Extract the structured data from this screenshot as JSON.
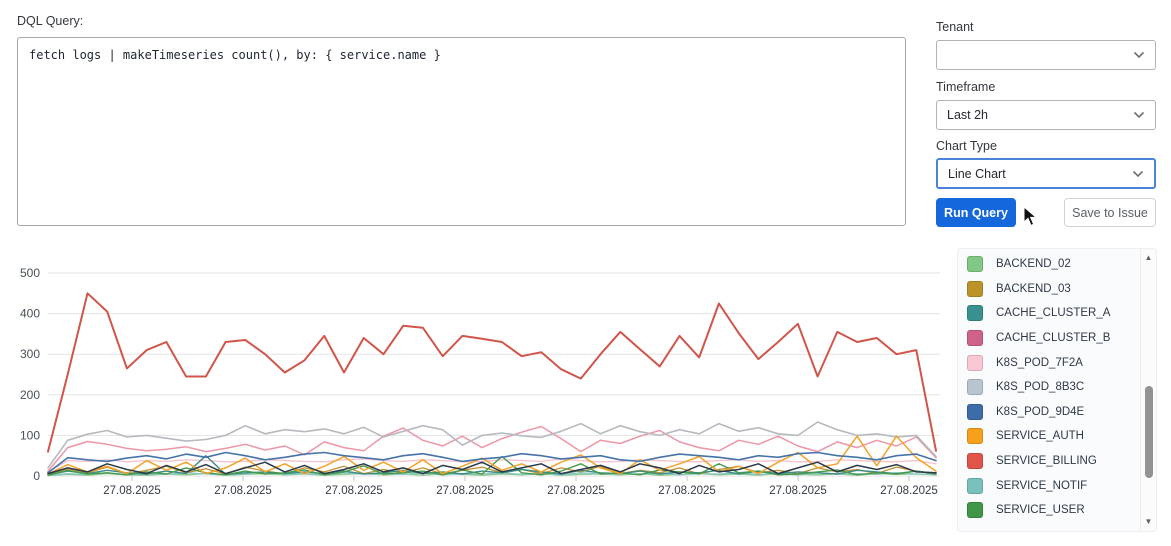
{
  "query_section": {
    "label": "DQL Query:",
    "query_text": "fetch logs | makeTimeseries count(), by: { service.name }"
  },
  "controls": {
    "tenant": {
      "label": "Tenant",
      "value": "",
      "redacted": true
    },
    "timeframe": {
      "label": "Timeframe",
      "value": "Last 2h"
    },
    "chart_type": {
      "label": "Chart Type",
      "value": "Line Chart",
      "focused": true
    },
    "run_button": {
      "label": "Run Query",
      "color": "#1568dc"
    },
    "save_button": {
      "label": "Save to Issue"
    }
  },
  "legend": {
    "items": [
      {
        "label": "BACKEND_02",
        "color": "#82c785"
      },
      {
        "label": "BACKEND_03",
        "color": "#bb9327"
      },
      {
        "label": "CACHE_CLUSTER_A",
        "color": "#38918e"
      },
      {
        "label": "CACHE_CLUSTER_B",
        "color": "#cf6288"
      },
      {
        "label": "K8S_POD_7F2A",
        "color": "#f8c9d4"
      },
      {
        "label": "K8S_POD_8B3C",
        "color": "#bac3d0"
      },
      {
        "label": "K8S_POD_9D4E",
        "color": "#3e6ca8"
      },
      {
        "label": "SERVICE_AUTH",
        "color": "#f6a01e"
      },
      {
        "label": "SERVICE_BILLING",
        "color": "#e1544a"
      },
      {
        "label": "SERVICE_NOTIF",
        "color": "#7ac1bc"
      },
      {
        "label": "SERVICE_USER",
        "color": "#3f9646"
      }
    ],
    "scrollable": true
  },
  "chart_data": {
    "type": "line",
    "title": "",
    "xlabel": "",
    "ylabel": "",
    "ylim": [
      0,
      500
    ],
    "yticks": [
      0,
      100,
      200,
      300,
      400,
      500
    ],
    "x_tick_labels": [
      "27.08.2025",
      "27.08.2025",
      "27.08.2025",
      "27.08.2025",
      "27.08.2025",
      "27.08.2025",
      "27.08.2025",
      "27.08.2025"
    ],
    "grid": true,
    "legend_position": "right-panel",
    "note": "values estimated from gridlines; one dark-navy line has no visible legend entry (legend is scrolled)",
    "series": [
      {
        "name": "BACKEND_02",
        "color": "#8ccb8f",
        "width": 1.3,
        "values": [
          1,
          4,
          2,
          6,
          3,
          2,
          5,
          3,
          6,
          2,
          4,
          6,
          3,
          5,
          2,
          4,
          6,
          3,
          5,
          2,
          6,
          4,
          2,
          5,
          3,
          6,
          2,
          4,
          5,
          3,
          6,
          2,
          4,
          6,
          3,
          5,
          2,
          6,
          4,
          3,
          5,
          2,
          6,
          4,
          5,
          3
        ]
      },
      {
        "name": "SERVICE_NOTIF",
        "color": "#85c7c1",
        "width": 1.3,
        "values": [
          2,
          6,
          4,
          8,
          3,
          6,
          4,
          8,
          5,
          3,
          6,
          8,
          4,
          6,
          3,
          8,
          5,
          6,
          4,
          8,
          3,
          6,
          5,
          8,
          4,
          6,
          3,
          8,
          5,
          6,
          4,
          8,
          3,
          6,
          5,
          8,
          4,
          6,
          3,
          8,
          5,
          6,
          4,
          8,
          5,
          4
        ]
      },
      {
        "name": "K8S_POD_7F2A",
        "color": "#f5c3cf",
        "width": 1.4,
        "values": [
          10,
          38,
          36,
          40,
          35,
          38,
          36,
          40,
          38,
          35,
          36,
          40,
          38,
          36,
          35,
          40,
          42,
          38,
          36,
          40,
          38,
          35,
          36,
          40,
          38,
          36,
          42,
          38,
          35,
          36,
          40,
          38,
          36,
          35,
          38,
          40,
          36,
          38,
          35,
          36,
          40,
          38,
          36,
          35,
          38,
          30
        ]
      },
      {
        "name": "CACHE_CLUSTER_B",
        "color": "#ec96a6",
        "width": 1.5,
        "values": [
          12,
          70,
          85,
          78,
          68,
          62,
          66,
          72,
          60,
          68,
          78,
          64,
          74,
          52,
          84,
          70,
          62,
          98,
          118,
          88,
          74,
          98,
          70,
          92,
          108,
          122,
          92,
          60,
          88,
          80,
          98,
          112,
          84,
          70,
          62,
          88,
          78,
          98,
          74,
          60,
          84,
          70,
          88,
          74,
          96,
          45
        ]
      },
      {
        "name": "K8S_POD_8B3C",
        "color": "#b6babf",
        "width": 1.6,
        "values": [
          20,
          88,
          103,
          112,
          96,
          100,
          93,
          86,
          90,
          100,
          124,
          104,
          114,
          109,
          116,
          104,
          120,
          96,
          110,
          124,
          114,
          76,
          100,
          106,
          99,
          95,
          110,
          129,
          104,
          124,
          109,
          100,
          114,
          104,
          129,
          110,
          119,
          104,
          100,
          133,
          114,
          100,
          104,
          96,
          100,
          48
        ]
      },
      {
        "name": "BACKEND_03",
        "color": "#c39030",
        "width": 1.3,
        "values": [
          4,
          18,
          8,
          22,
          5,
          14,
          24,
          8,
          18,
          5,
          22,
          12,
          6,
          20,
          10,
          24,
          6,
          16,
          8,
          20,
          5,
          14,
          22,
          8,
          16,
          6,
          20,
          10,
          24,
          6,
          14,
          8,
          20,
          5,
          16,
          24,
          8,
          14,
          6,
          20,
          10,
          16,
          6,
          22,
          12,
          5
        ]
      },
      {
        "name": "CACHE_CLUSTER_A",
        "color": "#3a8c89",
        "width": 1.4,
        "values": [
          3,
          12,
          6,
          14,
          8,
          5,
          12,
          6,
          50,
          4,
          8,
          10,
          6,
          10,
          6,
          12,
          5,
          8,
          14,
          6,
          10,
          5,
          12,
          8,
          16,
          10,
          5,
          14,
          8,
          6,
          12,
          5,
          10,
          8,
          14,
          5,
          12,
          6,
          10,
          8,
          5,
          14,
          10,
          6,
          12,
          5
        ]
      },
      {
        "name": "SERVICE_USER",
        "color": "#469a4b",
        "width": 1.4,
        "values": [
          2,
          14,
          5,
          8,
          3,
          10,
          5,
          20,
          8,
          3,
          12,
          5,
          8,
          15,
          3,
          10,
          25,
          5,
          8,
          12,
          3,
          15,
          5,
          48,
          8,
          3,
          12,
          30,
          5,
          8,
          3,
          15,
          10,
          5,
          30,
          8,
          12,
          3,
          5,
          10,
          15,
          3,
          8,
          5,
          12,
          6
        ]
      },
      {
        "name": "SERVICE_AUTH",
        "color": "#f3a32a",
        "width": 1.5,
        "values": [
          5,
          28,
          10,
          24,
          6,
          38,
          14,
          34,
          6,
          20,
          44,
          10,
          30,
          6,
          24,
          48,
          14,
          34,
          10,
          40,
          6,
          24,
          44,
          14,
          30,
          10,
          34,
          52,
          20,
          6,
          40,
          14,
          30,
          48,
          10,
          24,
          6,
          34,
          58,
          20,
          30,
          98,
          25,
          98,
          45,
          12
        ]
      },
      {
        "name": "K8S_POD_9D4E",
        "color": "#4673a9",
        "width": 1.6,
        "values": [
          8,
          45,
          40,
          36,
          44,
          50,
          42,
          54,
          46,
          58,
          50,
          40,
          46,
          54,
          58,
          50,
          45,
          40,
          50,
          55,
          46,
          36,
          42,
          46,
          55,
          50,
          42,
          46,
          50,
          40,
          36,
          46,
          54,
          50,
          46,
          40,
          50,
          46,
          55,
          58,
          50,
          46,
          40,
          50,
          54,
          38
        ]
      },
      {
        "name": "",
        "color": "#2b3948",
        "width": 1.5,
        "values": [
          6,
          20,
          10,
          30,
          16,
          6,
          26,
          10,
          28,
          6,
          20,
          34,
          10,
          26,
          6,
          16,
          30,
          10,
          20,
          6,
          26,
          16,
          34,
          10,
          20,
          30,
          6,
          16,
          26,
          10,
          30,
          20,
          6,
          26,
          10,
          16,
          30,
          6,
          20,
          34,
          10,
          26,
          16,
          28,
          10,
          8
        ]
      },
      {
        "name": "SERVICE_BILLING",
        "color": "#d0554a",
        "width": 2,
        "values": [
          60,
          250,
          450,
          405,
          265,
          310,
          330,
          245,
          245,
          330,
          335,
          300,
          255,
          285,
          345,
          255,
          340,
          300,
          370,
          365,
          295,
          345,
          338,
          330,
          295,
          305,
          263,
          240,
          300,
          355,
          312,
          270,
          345,
          292,
          425,
          352,
          288,
          330,
          375,
          245,
          355,
          330,
          340,
          300,
          310,
          62
        ]
      }
    ]
  }
}
